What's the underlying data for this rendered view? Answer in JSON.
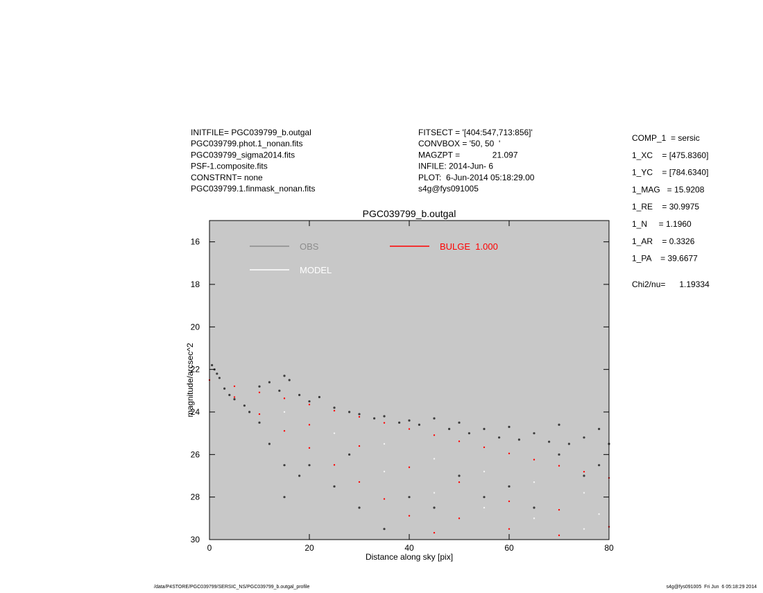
{
  "header_left": [
    "INITFILE= PGC039799_b.outgal",
    "PGC039799.phot.1_nonan.fits",
    "PGC039799_sigma2014.fits",
    "PSF-1.composite.fits",
    "CONSTRNT= none",
    "PGC039799.1.finmask_nonan.fits"
  ],
  "header_mid": [
    "FITSECT = '[404:547,713:856]'",
    "CONVBOX = '50, 50  '",
    "MAGZPT =              21.097",
    "INFILE: 2014-Jun- 6",
    "PLOT:  6-Jun-2014 05:18:29.00",
    "s4g@fys091005"
  ],
  "params": [
    "COMP_1  = sersic",
    "1_XC    = [475.8360]",
    "1_YC    = [784.6340]",
    "1_MAG   = 15.9208",
    "1_RE    = 30.9975",
    "1_N     = 1.1960",
    "1_AR    = 0.3326",
    "1_PA    = 39.6677"
  ],
  "chi2": "Chi2/nu=      1.19334",
  "footer_left": "/data/P4STORE/PGC039799/SERSIC_NS/PGC039799_b.outgal_profile",
  "footer_right": "s4g@fys091005  Fri Jun  6 05:18:29 2014",
  "chart_data": {
    "type": "scatter",
    "title": "PGC039799_b.outgal",
    "xlabel": "Distance along sky [pix]",
    "ylabel": "magnitude/arcsec^2",
    "xlim": [
      0,
      80
    ],
    "xticks": [
      0,
      20,
      40,
      60,
      80
    ],
    "ylim": [
      15,
      30
    ],
    "yticks": [
      16,
      18,
      20,
      22,
      24,
      26,
      28,
      30
    ],
    "y_inverted": true,
    "background": "#c8c8c8",
    "series": [
      {
        "name": "OBS",
        "color": "#8c8c8c",
        "marker_color": "#3c3c3c",
        "x": [
          0.5,
          1,
          1.5,
          2,
          3,
          4,
          5,
          7,
          10,
          12,
          14,
          15,
          16,
          18,
          20,
          22,
          25,
          28,
          30,
          33,
          35,
          38,
          40,
          42,
          45,
          48,
          50,
          52,
          55,
          58,
          60,
          62,
          65,
          68,
          70,
          72,
          75,
          78,
          80,
          12,
          15,
          15,
          18,
          20,
          25,
          30,
          35,
          40,
          45,
          50,
          55,
          60,
          65,
          70,
          75,
          78,
          10,
          8,
          28
        ],
        "values": [
          21.8,
          22.0,
          22.2,
          22.4,
          22.9,
          23.2,
          23.4,
          23.7,
          22.8,
          22.6,
          23.0,
          22.3,
          22.5,
          23.2,
          23.5,
          23.3,
          23.8,
          24.0,
          24.1,
          24.3,
          24.2,
          24.5,
          24.4,
          24.6,
          24.3,
          24.8,
          24.5,
          25.0,
          24.8,
          25.2,
          24.7,
          25.3,
          25.0,
          25.4,
          24.6,
          25.5,
          25.2,
          24.8,
          25.5,
          25.5,
          26.5,
          28.0,
          27.0,
          26.5,
          27.5,
          28.5,
          29.5,
          28.0,
          28.5,
          27.0,
          28.0,
          27.5,
          28.5,
          26.0,
          27.0,
          26.5,
          24.5,
          24.0,
          26.0
        ]
      },
      {
        "name": "MODEL",
        "color": "#ffffff",
        "marker_color": "#f4f4f4",
        "x": [
          15,
          25,
          35,
          35,
          45,
          45,
          55,
          55,
          65,
          65,
          75,
          75,
          78
        ],
        "values": [
          24.0,
          25.0,
          25.5,
          26.8,
          26.2,
          27.8,
          26.8,
          28.5,
          27.3,
          29.0,
          27.8,
          29.5,
          28.8
        ]
      },
      {
        "name": "BULGE  1.000",
        "color": "#ff0000",
        "marker_color": "#ff0000",
        "x": [
          0,
          5,
          10,
          15,
          20,
          25,
          30,
          35,
          40,
          45,
          50,
          55,
          60,
          65,
          70,
          75,
          80,
          5,
          10,
          15,
          20,
          25,
          30,
          35,
          40,
          45,
          20,
          30,
          40,
          50,
          60,
          70,
          80,
          50,
          60,
          70
        ],
        "values": [
          22.5,
          22.79,
          23.08,
          23.36,
          23.65,
          23.94,
          24.23,
          24.51,
          24.8,
          25.09,
          25.38,
          25.66,
          25.95,
          26.24,
          26.53,
          26.81,
          27.1,
          23.3,
          24.1,
          24.89,
          25.69,
          26.49,
          27.29,
          28.09,
          28.88,
          29.68,
          24.6,
          25.6,
          26.6,
          27.3,
          28.2,
          28.6,
          29.4,
          29.0,
          29.5,
          29.8
        ]
      }
    ]
  }
}
